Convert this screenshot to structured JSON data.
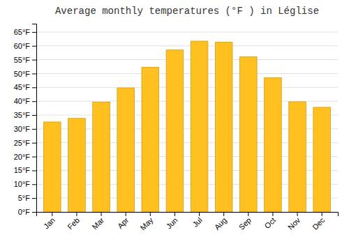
{
  "chart_data": {
    "type": "bar",
    "title": "Average monthly temperatures (°F ) in Léglise",
    "categories": [
      "Jan",
      "Feb",
      "Mar",
      "Apr",
      "May",
      "Jun",
      "Jul",
      "Aug",
      "Sep",
      "Oct",
      "Nov",
      "Dec"
    ],
    "values": [
      32.5,
      33.8,
      39.7,
      44.8,
      52.3,
      58.5,
      61.7,
      61.3,
      56.0,
      48.5,
      39.8,
      37.8
    ],
    "color": "#FFC020",
    "ylim": [
      0,
      68
    ],
    "yticks": [
      {
        "value": 0,
        "label": "0°F"
      },
      {
        "value": 5,
        "label": "5°F"
      },
      {
        "value": 10,
        "label": "10°F"
      },
      {
        "value": 15,
        "label": "15°F"
      },
      {
        "value": 20,
        "label": "20°F"
      },
      {
        "value": 25,
        "label": "25°F"
      },
      {
        "value": 30,
        "label": "30°F"
      },
      {
        "value": 35,
        "label": "35°F"
      },
      {
        "value": 40,
        "label": "40°F"
      },
      {
        "value": 45,
        "label": "45°F"
      },
      {
        "value": 50,
        "label": "50°F"
      },
      {
        "value": 55,
        "label": "55°F"
      },
      {
        "value": 60,
        "label": "60°F"
      },
      {
        "value": 65,
        "label": "65°F"
      }
    ],
    "grid": true
  }
}
